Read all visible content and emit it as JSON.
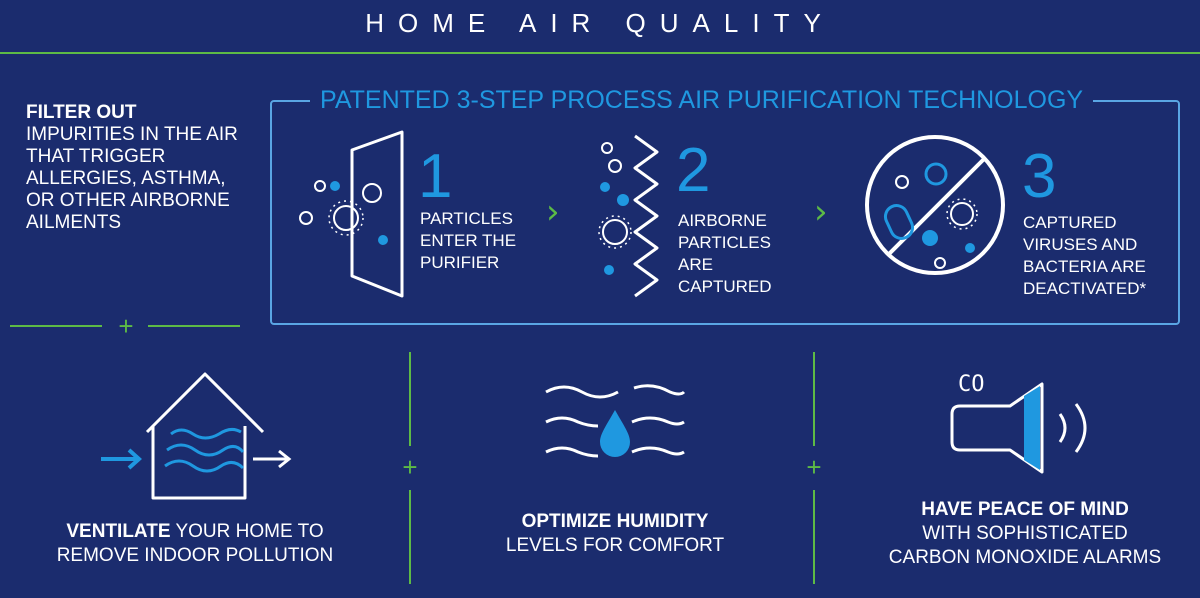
{
  "header": {
    "title": "HOME AIR QUALITY"
  },
  "filter": {
    "heading": "FILTER OUT",
    "body": "IMPURITIES IN THE AIR THAT TRIGGER ALLERGIES, ASTHMA, OR OTHER AIRBORNE AILMENTS"
  },
  "process": {
    "title": "PATENTED 3-STEP PROCESS AIR PURIFICATION TECHNOLOGY",
    "steps": [
      {
        "number": "1",
        "lines": [
          "PARTICLES",
          "ENTER THE",
          "PURIFIER"
        ]
      },
      {
        "number": "2",
        "lines": [
          "AIRBORNE",
          "PARTICLES",
          "ARE",
          "CAPTURED"
        ]
      },
      {
        "number": "3",
        "lines": [
          "CAPTURED",
          "VIRUSES AND",
          "BACTERIA ARE",
          "DEACTIVATED*"
        ]
      }
    ]
  },
  "features": {
    "ventilate": {
      "bold": "VENTILATE",
      "rest": " YOUR HOME TO",
      "line2": "REMOVE INDOOR POLLUTION"
    },
    "humidity": {
      "bold": "OPTIMIZE HUMIDITY",
      "line2": "LEVELS FOR COMFORT"
    },
    "alarm": {
      "bold": "HAVE PEACE OF MIND",
      "line2": "WITH SOPHISTICATED",
      "line3": "CARBON MONOXIDE ALARMS",
      "icon_label": "CO"
    }
  },
  "colors": {
    "background": "#1b2c6e",
    "accent_blue": "#1f98e0",
    "accent_green": "#5dbb46",
    "box_border": "#5aa6e4"
  }
}
